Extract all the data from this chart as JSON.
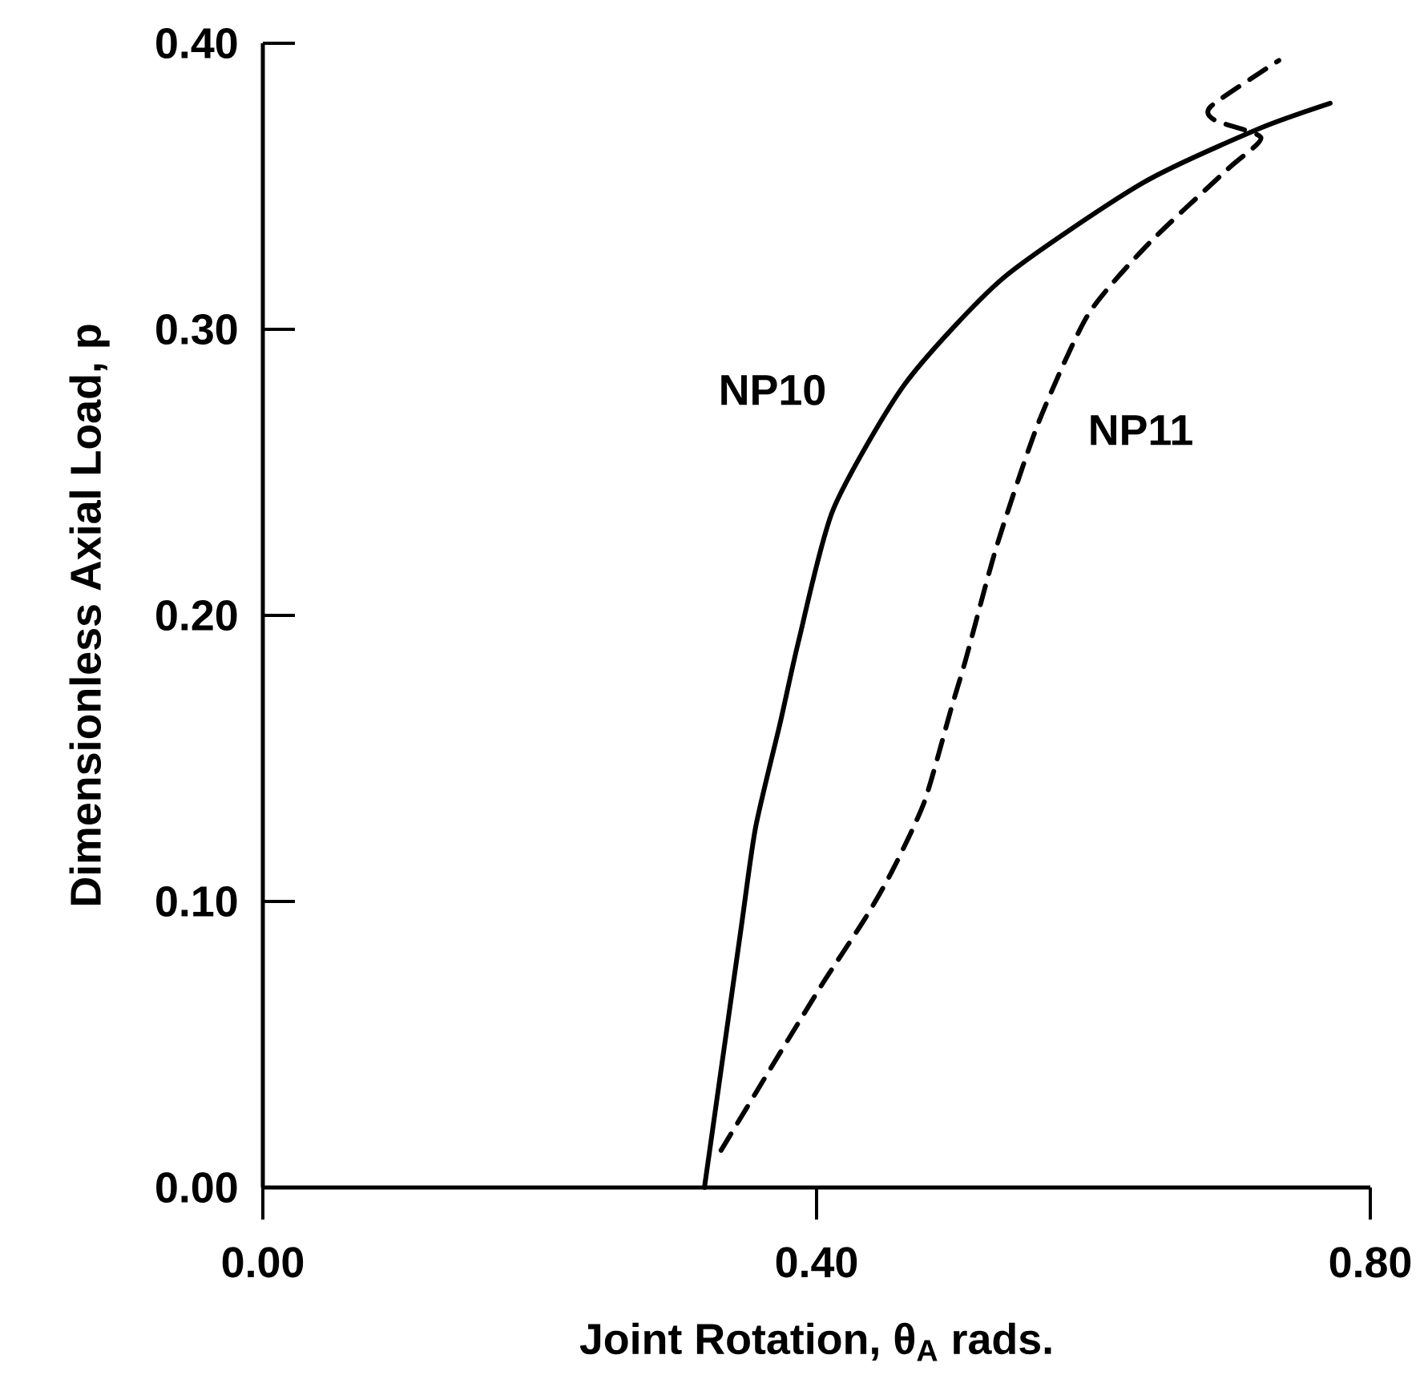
{
  "chart_data": {
    "type": "line",
    "xlabel": "Joint Rotation, θ$_{A}$ rads.",
    "ylabel": "Dimensionless Axial Load, p",
    "xlim": [
      0,
      0.8
    ],
    "ylim": [
      0,
      0.4
    ],
    "xticks": [
      {
        "value": 0,
        "label": "0.00"
      },
      {
        "value": 0.4,
        "label": "0.40"
      },
      {
        "value": 0.8,
        "label": "0.80"
      }
    ],
    "yticks": [
      {
        "value": 0,
        "label": "0.00"
      },
      {
        "value": 0.1,
        "label": "0.10"
      },
      {
        "value": 0.2,
        "label": "0.20"
      },
      {
        "value": 0.3,
        "label": "0.30"
      },
      {
        "value": 0.4,
        "label": "0.40"
      }
    ],
    "grid": false,
    "legend": false,
    "series": [
      {
        "name": "NP10",
        "color": "#000000",
        "line_style": "solid",
        "x": [
          0.319,
          0.345,
          0.356,
          0.374,
          0.387,
          0.412,
          0.464,
          0.535,
          0.635,
          0.719,
          0.771
        ],
        "values": [
          0.0,
          0.089,
          0.126,
          0.163,
          0.191,
          0.237,
          0.281,
          0.318,
          0.351,
          0.37,
          0.379
        ]
      },
      {
        "name": "NP11",
        "color": "#000000",
        "line_style": "dashed",
        "x": [
          0.331,
          0.366,
          0.404,
          0.435,
          0.455,
          0.478,
          0.497,
          0.508,
          0.53,
          0.56,
          0.596,
          0.64,
          0.697,
          0.721,
          0.688,
          0.685,
          0.734
        ],
        "values": [
          0.013,
          0.041,
          0.071,
          0.094,
          0.111,
          0.135,
          0.167,
          0.185,
          0.224,
          0.267,
          0.305,
          0.33,
          0.356,
          0.367,
          0.373,
          0.378,
          0.394
        ]
      }
    ]
  }
}
